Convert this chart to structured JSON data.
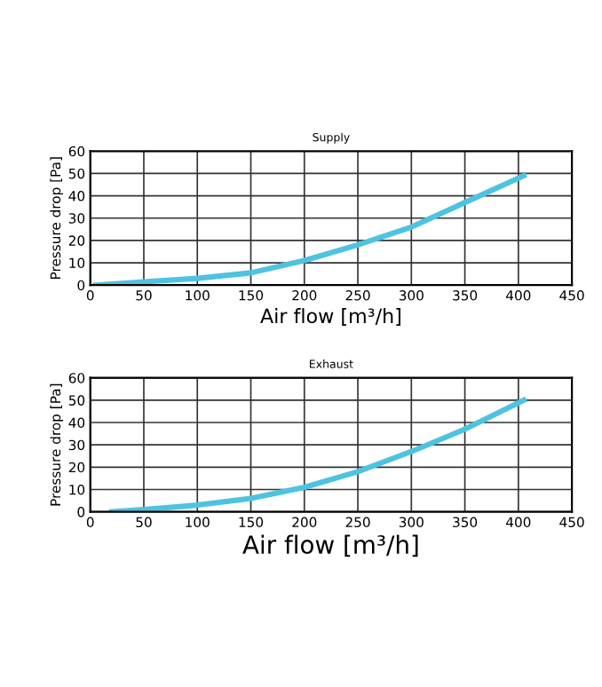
{
  "chart_data": [
    {
      "type": "line",
      "title": "Supply",
      "xlabel": "Air flow [m³/h]",
      "ylabel": "Pressure drop [Pa]",
      "xlim": [
        0,
        450
      ],
      "ylim": [
        0,
        60
      ],
      "xticks": [
        0,
        50,
        100,
        150,
        200,
        250,
        300,
        350,
        400,
        450
      ],
      "yticks": [
        0,
        10,
        20,
        30,
        40,
        50,
        60
      ],
      "grid": true,
      "marker": "none",
      "line_style": "solid",
      "series": [
        {
          "color": "#4ec3e0",
          "x": [
            5,
            50,
            100,
            150,
            200,
            250,
            300,
            350,
            405
          ],
          "values": [
            0,
            1.5,
            3,
            5.5,
            11,
            18,
            26,
            37,
            49
          ]
        }
      ]
    },
    {
      "type": "line",
      "title": "Exhaust",
      "xlabel": "Air flow [m³/h]",
      "ylabel": "Pressure drop [Pa]",
      "xlim": [
        0,
        450
      ],
      "ylim": [
        0,
        60
      ],
      "xticks": [
        0,
        50,
        100,
        150,
        200,
        250,
        300,
        350,
        400,
        450
      ],
      "yticks": [
        0,
        10,
        20,
        30,
        40,
        50,
        60
      ],
      "grid": true,
      "marker": "none",
      "line_style": "solid",
      "series": [
        {
          "color": "#4ec3e0",
          "x": [
            20,
            50,
            100,
            150,
            200,
            250,
            300,
            350,
            405
          ],
          "values": [
            0,
            1,
            3,
            6,
            11,
            18,
            27,
            37,
            50
          ]
        }
      ]
    }
  ]
}
